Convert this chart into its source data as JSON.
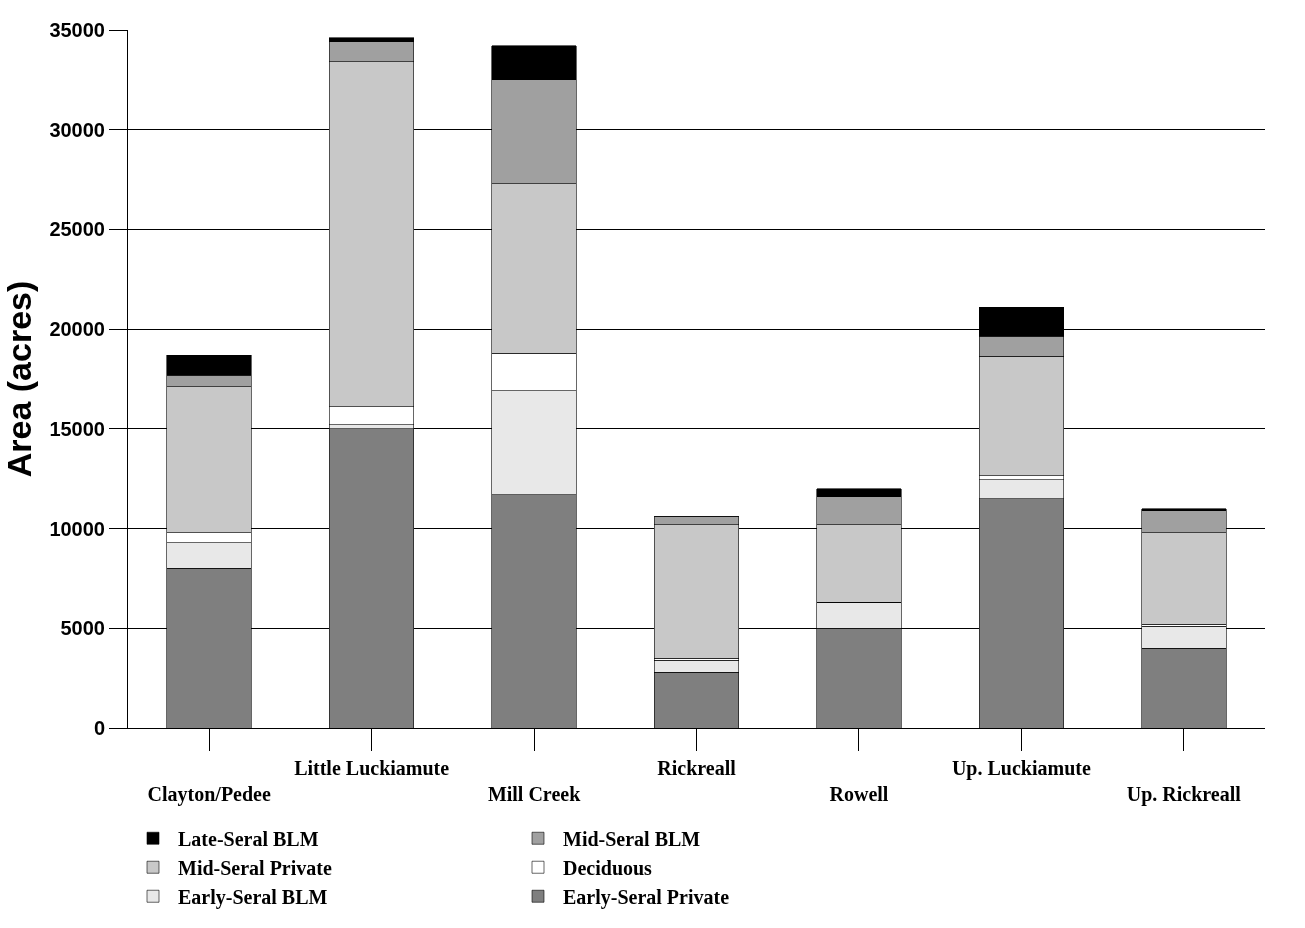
{
  "chart_data": {
    "type": "bar",
    "stacked": true,
    "ylabel": "Area (acres)",
    "categories": [
      "Clayton/Pedee",
      "Little Luckiamute",
      "Mill Creek",
      "Rickreall",
      "Rowell",
      "Up. Luckiamute",
      "Up. Rickreall"
    ],
    "series": [
      {
        "name": "Early-Seral Private",
        "color": "#7f7f7f",
        "values": [
          8000,
          15000,
          11700,
          2800,
          5000,
          11500,
          4000
        ]
      },
      {
        "name": "Early-Seral BLM",
        "color": "#e8e8e8",
        "values": [
          1300,
          200,
          5200,
          600,
          1300,
          950,
          1100
        ]
      },
      {
        "name": "Deciduous",
        "color": "#ffffff",
        "values": [
          500,
          900,
          1900,
          100,
          0,
          200,
          100
        ]
      },
      {
        "name": "Mid-Seral Private",
        "color": "#c8c8c8",
        "values": [
          7300,
          17300,
          8500,
          6700,
          3900,
          6000,
          4600
        ]
      },
      {
        "name": "Mid-Seral BLM",
        "color": "#a0a0a0",
        "values": [
          600,
          1000,
          5200,
          400,
          1400,
          1000,
          1100
        ]
      },
      {
        "name": "Late-Seral BLM",
        "color": "#000000",
        "values": [
          1000,
          200,
          1700,
          0,
          400,
          1450,
          100
        ]
      }
    ],
    "ylim": [
      0,
      35000
    ],
    "yticks": [
      0,
      5000,
      10000,
      15000,
      20000,
      25000,
      30000,
      35000
    ],
    "grid": "y",
    "legend": "bottom"
  }
}
